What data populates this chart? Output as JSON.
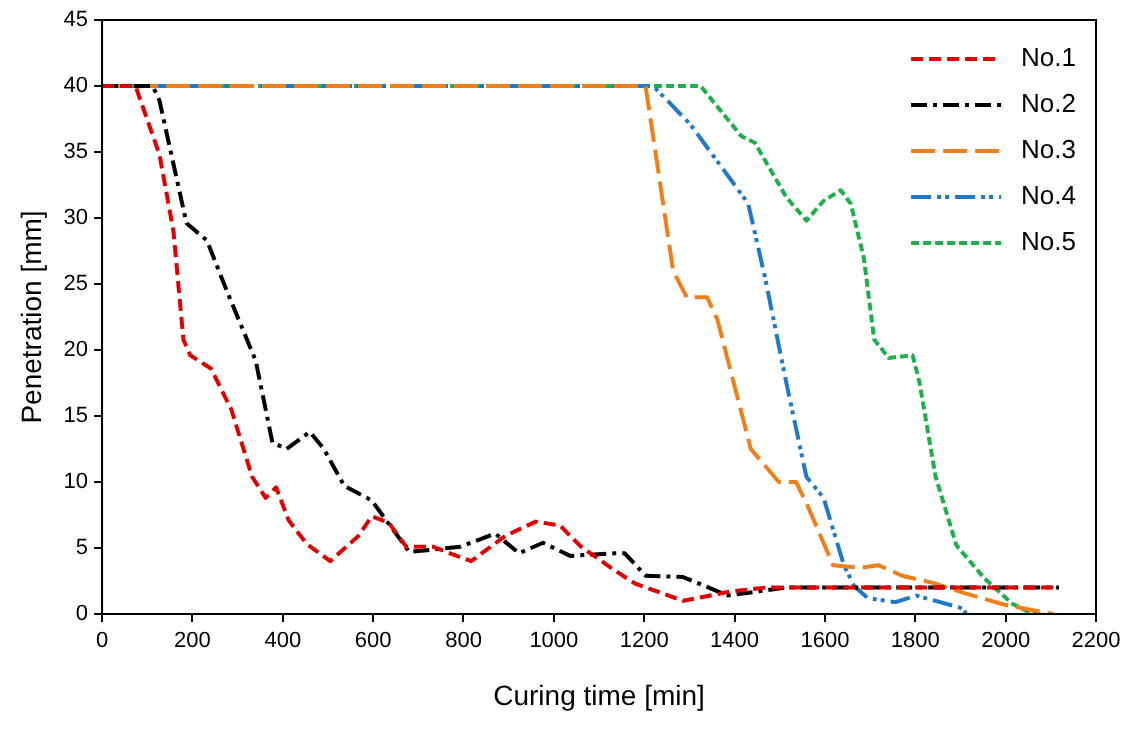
{
  "chart_data": {
    "type": "line",
    "xlabel": "Curing time [min]",
    "ylabel": "Penetration [mm]",
    "xlim": [
      0,
      2200
    ],
    "xticks": [
      0,
      200,
      400,
      600,
      800,
      1000,
      1200,
      1400,
      1600,
      1800,
      2000,
      2200
    ],
    "ylim": [
      0,
      45
    ],
    "yticks": [
      0,
      5,
      10,
      15,
      20,
      25,
      30,
      35,
      40,
      45
    ],
    "grid": false,
    "legend": "top right",
    "marker": "none",
    "line_style": "dashed",
    "series": [
      {
        "name": "No.1",
        "color": "#e00000",
        "x": [
          0,
          74,
          127,
          158,
          180,
          195,
          241,
          286,
          332,
          362,
          385,
          413,
          453,
          505,
          567,
          597,
          635,
          673,
          732,
          817,
          892,
          960,
          1014,
          1060,
          1135,
          1180,
          1286,
          1391,
          1468,
          2118
        ],
        "values": [
          40,
          40,
          34.8,
          29,
          20.8,
          19.6,
          18.6,
          15.5,
          10.4,
          8.8,
          9.6,
          7.1,
          5.3,
          4,
          5.9,
          7.4,
          6.9,
          5.1,
          5.1,
          4,
          5.9,
          7,
          6.7,
          5.1,
          3.3,
          2.3,
          1,
          1.7,
          2,
          2
        ]
      },
      {
        "name": "No.2",
        "color": "#000000",
        "x": [
          0,
          112,
          127,
          187,
          232,
          277,
          340,
          377,
          408,
          460,
          491,
          536,
          597,
          680,
          794,
          870,
          923,
          976,
          1036,
          1135,
          1157,
          1203,
          1286,
          1385,
          1514,
          2118
        ],
        "values": [
          40,
          40,
          38.9,
          29.6,
          28.3,
          24.4,
          19.2,
          13,
          12.5,
          13.8,
          12.5,
          9.7,
          8.6,
          4.7,
          5.1,
          6.1,
          4.6,
          5.4,
          4.4,
          4.6,
          4.6,
          2.9,
          2.8,
          1.4,
          2,
          2
        ]
      },
      {
        "name": "No.3",
        "color": "#f07f1a",
        "x": [
          0,
          1203,
          1264,
          1294,
          1339,
          1362,
          1436,
          1498,
          1536,
          1559,
          1618,
          1680,
          1718,
          1771,
          1845,
          1907,
          1998,
          2105
        ],
        "values": [
          40,
          40,
          26,
          24,
          24,
          22.3,
          12.5,
          10,
          10,
          8.4,
          3.7,
          3.5,
          3.7,
          2.9,
          2.3,
          1.6,
          0.7,
          0
        ]
      },
      {
        "name": "No.4",
        "color": "#1f78c8",
        "x": [
          0,
          1220,
          1302,
          1430,
          1468,
          1514,
          1559,
          1597,
          1642,
          1665,
          1695,
          1756,
          1802,
          1907,
          1912
        ],
        "values": [
          40,
          40,
          37.1,
          31.1,
          25.4,
          17.6,
          10.4,
          8.8,
          3.7,
          2.1,
          1.2,
          0.9,
          1.4,
          0.4,
          0
        ]
      },
      {
        "name": "No.5",
        "color": "#1db04a",
        "x": [
          0,
          1325,
          1377,
          1415,
          1445,
          1514,
          1559,
          1597,
          1635,
          1657,
          1686,
          1709,
          1741,
          1794,
          1809,
          1845,
          1891,
          1953,
          2014,
          2059,
          2080
        ],
        "values": [
          40,
          40,
          37.8,
          36.2,
          35.7,
          31.6,
          29.8,
          31.3,
          32.1,
          31.1,
          27,
          20.8,
          19.4,
          19.6,
          17.6,
          10.4,
          5.2,
          2.7,
          0.8,
          0,
          0
        ]
      }
    ]
  }
}
